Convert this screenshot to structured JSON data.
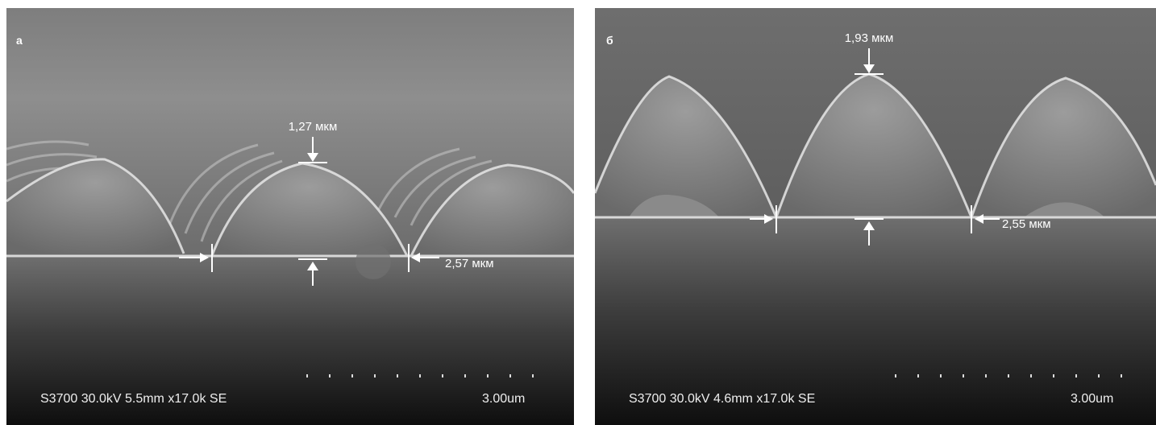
{
  "panels": [
    {
      "label": "а",
      "height_label": "1,27 мкм",
      "width_label": "2,57 мкм",
      "footer": "S3700 30.0kV 5.5mm x17.0k SE",
      "scale": "3.00um"
    },
    {
      "label": "б",
      "height_label": "1,93 мкм",
      "width_label": "2,55 мкм",
      "footer": "S3700 30.0kV 4.6mm x17.0k SE",
      "scale": "3.00um"
    }
  ]
}
